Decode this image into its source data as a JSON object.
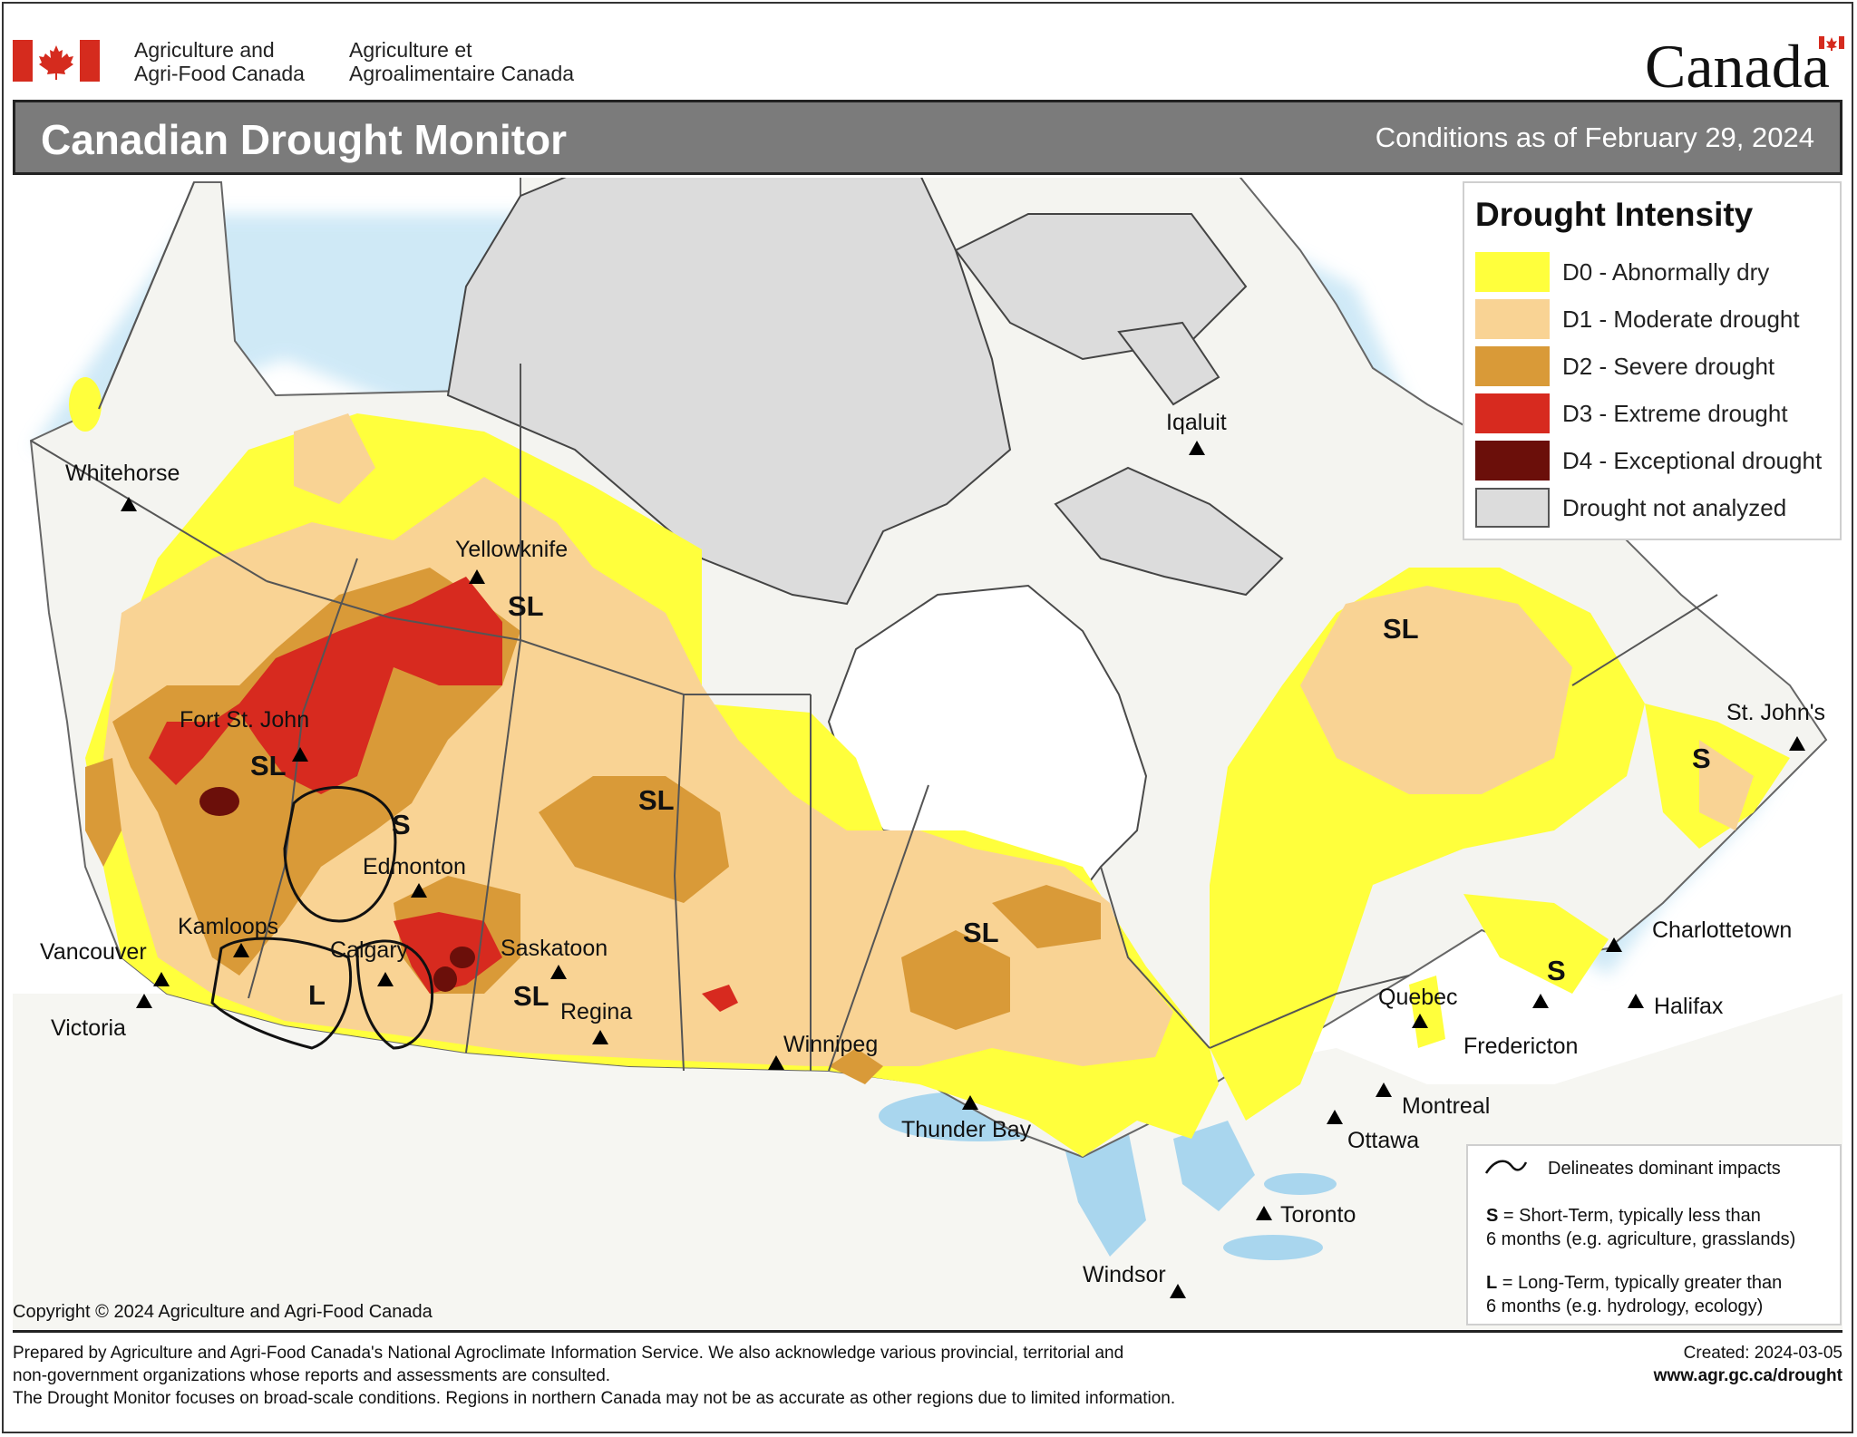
{
  "header": {
    "agency_en_line1": "Agriculture and",
    "agency_en_line2": "Agri-Food Canada",
    "agency_fr_line1": "Agriculture et",
    "agency_fr_line2": "Agroalimentaire Canada",
    "wordmark": "Canada",
    "title": "Canadian Drought Monitor",
    "conditions_date": "Conditions as of February 29, 2024"
  },
  "legend": {
    "title": "Drought Intensity",
    "items": [
      {
        "label": "D0 - Abnormally dry",
        "color": "#ffff3c"
      },
      {
        "label": "D1 - Moderate drought",
        "color": "#f9d394"
      },
      {
        "label": "D2 - Severe drought",
        "color": "#d99a38"
      },
      {
        "label": "D3 - Extreme drought",
        "color": "#d72a1f"
      },
      {
        "label": "D4 - Exceptional drought",
        "color": "#6b0f0a"
      },
      {
        "label": "Drought not analyzed",
        "color": "#dcdcdc"
      }
    ]
  },
  "impacts_legend": {
    "delineates": "Delineates dominant impacts",
    "s_key": "S",
    "s_text": "= Short-Term, typically less than",
    "s_text2": "6 months (e.g. agriculture, grasslands)",
    "l_key": "L",
    "l_text": "= Long-Term, typically greater  than",
    "l_text2": "6 months (e.g. hydrology, ecology)"
  },
  "cities": [
    {
      "name": "Whitehorse"
    },
    {
      "name": "Yellowknife"
    },
    {
      "name": "Iqaluit"
    },
    {
      "name": "Fort St. John"
    },
    {
      "name": "Edmonton"
    },
    {
      "name": "Kamloops"
    },
    {
      "name": "Vancouver"
    },
    {
      "name": "Victoria"
    },
    {
      "name": "Calgary"
    },
    {
      "name": "Saskatoon"
    },
    {
      "name": "Regina"
    },
    {
      "name": "Winnipeg"
    },
    {
      "name": "Thunder Bay"
    },
    {
      "name": "St. John's"
    },
    {
      "name": "Charlottetown"
    },
    {
      "name": "Halifax"
    },
    {
      "name": "Fredericton"
    },
    {
      "name": "Quebec"
    },
    {
      "name": "Montreal"
    },
    {
      "name": "Ottawa"
    },
    {
      "name": "Toronto"
    },
    {
      "name": "Windsor"
    }
  ],
  "impact_labels": [
    "SL",
    "SL",
    "S",
    "SL",
    "L",
    "SL",
    "SL",
    "SL",
    "S",
    "S"
  ],
  "copyright": "Copyright © 2024 Agriculture and Agri-Food Canada",
  "footer": {
    "line1": "Prepared by Agriculture and Agri-Food Canada's National Agroclimate Information Service.  We also acknowledge various provincial, territorial and",
    "line2": "non-government organizations whose reports and assessments are consulted.",
    "line3": "The Drought Monitor focuses on broad-scale conditions.  Regions in northern Canada may not be as accurate as other regions due to limited information.",
    "created": "Created: 2024-03-05",
    "url": "www.agr.gc.ca/drought"
  }
}
